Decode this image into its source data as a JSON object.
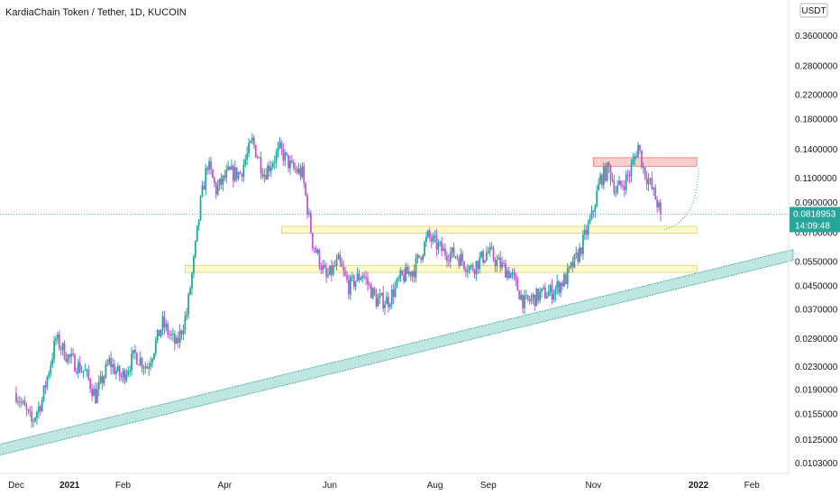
{
  "chart_data": {
    "type": "candlestick",
    "title": "KardiaChain Token / Tether, 1D, KUCOIN",
    "currency": "USDT",
    "y_scale": "log",
    "ylim": [
      0.0098,
      0.36
    ],
    "y_ticks": [
      "0.3600000",
      "0.2800000",
      "0.2200000",
      "0.1800000",
      "0.1400000",
      "0.1100000",
      "0.0900000",
      "0.0700000",
      "0.0550000",
      "0.0450000",
      "0.0370000",
      "0.0290000",
      "0.0230000",
      "0.0190000",
      "0.0155000",
      "0.0125000",
      "0.0103000"
    ],
    "x_ticks": [
      {
        "label": "Dec",
        "date": "2020-12-01",
        "bold": false
      },
      {
        "label": "2021",
        "date": "2021-01-01",
        "bold": true
      },
      {
        "label": "Feb",
        "date": "2021-02-01",
        "bold": false
      },
      {
        "label": "Apr",
        "date": "2021-04-01",
        "bold": false
      },
      {
        "label": "Jun",
        "date": "2021-06-01",
        "bold": false
      },
      {
        "label": "Aug",
        "date": "2021-08-01",
        "bold": false
      },
      {
        "label": "Sep",
        "date": "2021-09-01",
        "bold": false
      },
      {
        "label": "Nov",
        "date": "2021-11-01",
        "bold": false
      },
      {
        "label": "2022",
        "date": "2022-01-01",
        "bold": true
      },
      {
        "label": "Feb",
        "date": "2022-02-01",
        "bold": false
      }
    ],
    "price_path": [
      [
        "2020-12-01",
        0.0185
      ],
      [
        "2020-12-10",
        0.0145
      ],
      [
        "2020-12-16",
        0.0175
      ],
      [
        "2020-12-24",
        0.029
      ],
      [
        "2020-12-31",
        0.025
      ],
      [
        "2021-01-10",
        0.022
      ],
      [
        "2021-01-16",
        0.018
      ],
      [
        "2021-01-24",
        0.024
      ],
      [
        "2021-01-31",
        0.021
      ],
      [
        "2021-02-08",
        0.0255
      ],
      [
        "2021-02-15",
        0.023
      ],
      [
        "2021-02-24",
        0.033
      ],
      [
        "2021-03-04",
        0.0275
      ],
      [
        "2021-03-10",
        0.036
      ],
      [
        "2021-03-14",
        0.055
      ],
      [
        "2021-03-18",
        0.09
      ],
      [
        "2021-03-22",
        0.125
      ],
      [
        "2021-03-27",
        0.1
      ],
      [
        "2021-04-03",
        0.115
      ],
      [
        "2021-04-10",
        0.115
      ],
      [
        "2021-04-17",
        0.15
      ],
      [
        "2021-04-24",
        0.115
      ],
      [
        "2021-05-03",
        0.14
      ],
      [
        "2021-05-10",
        0.12
      ],
      [
        "2021-05-16",
        0.115
      ],
      [
        "2021-05-22",
        0.065
      ],
      [
        "2021-05-30",
        0.048
      ],
      [
        "2021-06-06",
        0.055
      ],
      [
        "2021-06-12",
        0.045
      ],
      [
        "2021-06-20",
        0.05
      ],
      [
        "2021-06-28",
        0.04
      ],
      [
        "2021-07-05",
        0.04
      ],
      [
        "2021-07-12",
        0.048
      ],
      [
        "2021-07-20",
        0.052
      ],
      [
        "2021-07-28",
        0.068
      ],
      [
        "2021-08-06",
        0.06
      ],
      [
        "2021-08-14",
        0.058
      ],
      [
        "2021-08-22",
        0.052
      ],
      [
        "2021-09-01",
        0.06
      ],
      [
        "2021-09-06",
        0.055
      ],
      [
        "2021-09-14",
        0.05
      ],
      [
        "2021-09-22",
        0.039
      ],
      [
        "2021-10-01",
        0.042
      ],
      [
        "2021-10-08",
        0.043
      ],
      [
        "2021-10-16",
        0.048
      ],
      [
        "2021-10-24",
        0.06
      ],
      [
        "2021-10-31",
        0.08
      ],
      [
        "2021-11-05",
        0.11
      ],
      [
        "2021-11-10",
        0.12
      ],
      [
        "2021-11-14",
        0.1
      ],
      [
        "2021-11-18",
        0.105
      ],
      [
        "2021-11-22",
        0.115
      ],
      [
        "2021-11-27",
        0.145
      ],
      [
        "2021-11-30",
        0.12
      ],
      [
        "2021-12-04",
        0.105
      ],
      [
        "2021-12-08",
        0.09
      ],
      [
        "2021-12-10",
        0.0818953
      ]
    ],
    "zones": [
      {
        "name": "resistance-zone",
        "from": "2021-11-01",
        "to": "2021-12-31",
        "low": 0.122,
        "high": 0.131,
        "color": "#f7c5c3",
        "stroke": "#e57373"
      },
      {
        "name": "mid-support-zone",
        "from": "2021-05-04",
        "to": "2021-12-31",
        "low": 0.07,
        "high": 0.074,
        "color": "#fff9c4",
        "stroke": "#e0cf6a"
      },
      {
        "name": "lower-support-zone",
        "from": "2021-03-09",
        "to": "2021-12-31",
        "low": 0.0505,
        "high": 0.0535,
        "color": "#fff9c4",
        "stroke": "#e0cf6a"
      }
    ],
    "trend_channel": {
      "from": [
        "2020-12-01",
        0.0125
      ],
      "to": [
        "2022-02-20",
        0.06
      ],
      "width": 0.045,
      "color": "#a5dcd6",
      "stroke": "#26a69a"
    },
    "curve_projection": {
      "from": [
        "2021-12-12",
        0.072
      ],
      "to": [
        "2022-01-01",
        0.122
      ],
      "color": "#26a69a"
    },
    "last_price": {
      "value": "0.0818953",
      "countdown": "14:09:48",
      "price": 0.0818953,
      "color": "#26a69a"
    },
    "up_color": "#26a69a",
    "down_color": "#e040fb",
    "down_color_main": "#c455d8"
  }
}
